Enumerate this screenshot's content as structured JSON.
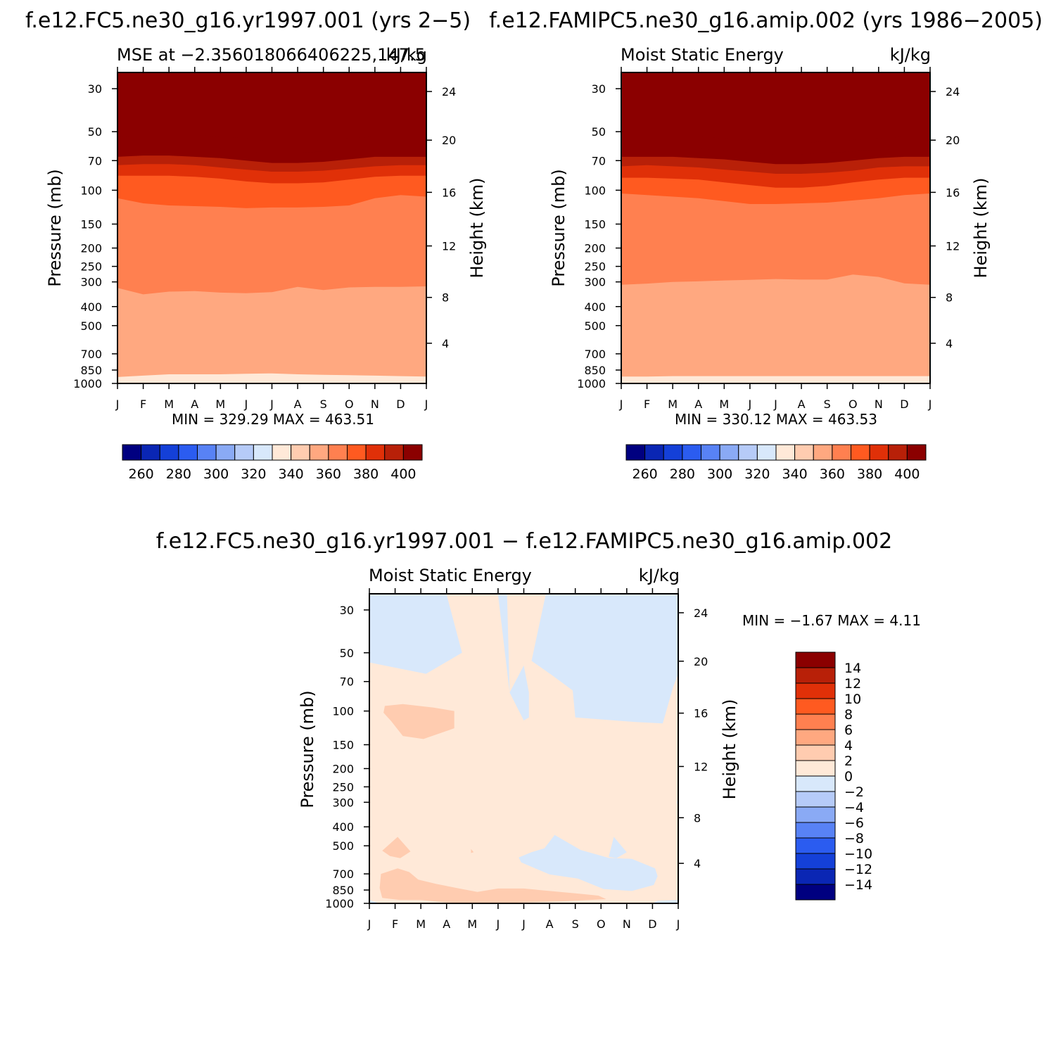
{
  "panels": [
    {
      "id": "p1",
      "case_title": "f.e12.FC5.ne30_g16.yr1997.001 (yrs 2-5)",
      "case_title_overlap": "f.e12.FAMIPC5.ne30_g16.amip.002 (yrs 1986-2005)",
      "left_label": "MSE at -2.356018066406225,147.5",
      "right_label": "kJ/kg",
      "minmax": "MIN = 329.29 MAX = 463.51"
    },
    {
      "id": "p2",
      "left_label": "Moist Static Energy",
      "right_label": "kJ/kg",
      "minmax": "MIN = 330.12 MAX = 463.53"
    },
    {
      "id": "p3",
      "case_title": "f.e12.FC5.ne30_g16.yr1997.001 - f.e12.FAMIPC5.ne30_g16.amip.002",
      "left_label": "Moist Static Energy",
      "right_label": "kJ/kg",
      "minmax": "MIN = -1.67 MAX = 4.11"
    }
  ],
  "axes": {
    "ylabel_left": "Pressure (mb)",
    "ylabel_right": "Height (km)",
    "pressure_ticks": [
      "30",
      "50",
      "70",
      "100",
      "150",
      "200",
      "250",
      "300",
      "400",
      "500",
      "700",
      "850",
      "1000"
    ],
    "height_ticks": [
      "4",
      "8",
      "12",
      "16",
      "20",
      "24"
    ],
    "month_ticks": [
      "J",
      "F",
      "M",
      "A",
      "M",
      "J",
      "J",
      "A",
      "S",
      "O",
      "N",
      "D",
      "J"
    ]
  },
  "colorbar_top": {
    "colors": [
      "#000080",
      "#0a26b4",
      "#1440d8",
      "#2b5cf0",
      "#5882f5",
      "#8aaaf5",
      "#b6cbf8",
      "#d8e8fb",
      "#ffe9d8",
      "#ffccb0",
      "#ffa880",
      "#ff8050",
      "#ff5a20",
      "#e03008",
      "#b82008",
      "#8b0000"
    ],
    "labels": [
      "260",
      "280",
      "300",
      "320",
      "340",
      "360",
      "380",
      "400"
    ]
  },
  "colorbar_diff": {
    "colors": [
      "#8b0000",
      "#b82008",
      "#e03008",
      "#ff5a20",
      "#ff8050",
      "#ffa880",
      "#ffccb0",
      "#ffe9d8",
      "#d8e8fb",
      "#b6cbf8",
      "#8aaaf5",
      "#5882f5",
      "#2b5cf0",
      "#1440d8",
      "#0a26b4",
      "#000080"
    ],
    "labels": [
      "14",
      "12",
      "10",
      "8",
      "6",
      "4",
      "2",
      "0",
      "-2",
      "-4",
      "-6",
      "-8",
      "-10",
      "-12",
      "-14"
    ]
  },
  "chart_data": [
    {
      "type": "heatmap",
      "title": "MSE at -2.356018066406225,147.5",
      "units": "kJ/kg",
      "xlabel": "",
      "ylabel": "Pressure (mb)",
      "y2label": "Height (km)",
      "x": [
        "J",
        "F",
        "M",
        "A",
        "M",
        "J",
        "J",
        "A",
        "S",
        "O",
        "N",
        "D",
        "J"
      ],
      "pressure_levels": [
        30,
        50,
        70,
        100,
        150,
        200,
        250,
        300,
        400,
        500,
        700,
        850,
        1000
      ],
      "contour_levels": [
        250,
        260,
        270,
        280,
        290,
        300,
        310,
        320,
        330,
        340,
        350,
        360,
        370,
        380,
        390,
        400
      ],
      "value_range": [
        329.29,
        463.51
      ],
      "bands_top_pressure_mb": [
        {
          "levels": [
            400,
            500
          ],
          "p": [
            53,
            52,
            52,
            52,
            53,
            54,
            56,
            56,
            55,
            54,
            53,
            53,
            53
          ]
        },
        {
          "levels": [
            390,
            400
          ],
          "p": [
            61,
            60,
            60,
            60,
            61,
            63,
            64,
            64,
            63,
            62,
            61,
            61,
            61
          ]
        },
        {
          "levels": [
            380,
            390
          ],
          "p": [
            67,
            66,
            66,
            67,
            68,
            70,
            72,
            72,
            71,
            69,
            67,
            67,
            67
          ]
        },
        {
          "levels": [
            370,
            380
          ],
          "p": [
            74,
            73,
            73,
            74,
            76,
            78,
            80,
            80,
            79,
            77,
            75,
            74,
            74
          ]
        },
        {
          "levels": [
            360,
            370
          ],
          "p": [
            84,
            84,
            84,
            85,
            87,
            90,
            92,
            92,
            91,
            88,
            85,
            84,
            84
          ]
        },
        {
          "levels": [
            350,
            360
          ],
          "p": [
            110,
            117,
            120,
            121,
            122,
            124,
            123,
            123,
            122,
            120,
            110,
            106,
            108
          ]
        },
        {
          "levels": [
            340,
            350
          ],
          "p": [
            322,
            347,
            336,
            334,
            340,
            342,
            338,
            318,
            330,
            320,
            318,
            318,
            316
          ]
        },
        {
          "levels": [
            330,
            340
          ],
          "p": [
            925,
            910,
            895,
            895,
            895,
            890,
            885,
            895,
            900,
            905,
            910,
            915,
            920
          ]
        }
      ],
      "minmax": "MIN = 329.29 MAX = 463.51"
    },
    {
      "type": "heatmap",
      "title": "Moist Static Energy",
      "units": "kJ/kg",
      "xlabel": "",
      "ylabel": "Pressure (mb)",
      "y2label": "Height (km)",
      "x": [
        "J",
        "F",
        "M",
        "A",
        "M",
        "J",
        "J",
        "A",
        "S",
        "O",
        "N",
        "D",
        "J"
      ],
      "pressure_levels": [
        30,
        50,
        70,
        100,
        150,
        200,
        250,
        300,
        400,
        500,
        700,
        850,
        1000
      ],
      "contour_levels": [
        250,
        260,
        270,
        280,
        290,
        300,
        310,
        320,
        330,
        340,
        350,
        360,
        370,
        380,
        390,
        400
      ],
      "value_range": [
        330.12,
        463.53
      ],
      "bands_top_pressure_mb": [
        {
          "levels": [
            400,
            500
          ],
          "p": [
            53,
            53,
            53,
            53,
            54,
            55,
            57,
            57,
            56,
            55,
            54,
            53,
            53
          ]
        },
        {
          "levels": [
            390,
            400
          ],
          "p": [
            61,
            61,
            61,
            61,
            62,
            64,
            65,
            65,
            64,
            63,
            62,
            61,
            61
          ]
        },
        {
          "levels": [
            380,
            390
          ],
          "p": [
            67,
            67,
            67,
            68,
            69,
            71,
            73,
            73,
            72,
            70,
            68,
            67,
            67
          ]
        },
        {
          "levels": [
            370,
            380
          ],
          "p": [
            75,
            74,
            75,
            76,
            78,
            80,
            82,
            82,
            81,
            79,
            76,
            75,
            75
          ]
        },
        {
          "levels": [
            360,
            370
          ],
          "p": [
            86,
            86,
            87,
            88,
            91,
            94,
            97,
            97,
            95,
            91,
            88,
            86,
            86
          ]
        },
        {
          "levels": [
            350,
            360
          ],
          "p": [
            104,
            106,
            108,
            110,
            114,
            118,
            118,
            117,
            116,
            113,
            110,
            106,
            104
          ]
        },
        {
          "levels": [
            340,
            350
          ],
          "p": [
            310,
            306,
            300,
            298,
            295,
            293,
            290,
            292,
            292,
            275,
            283,
            305,
            310
          ]
        },
        {
          "levels": [
            330,
            340
          ],
          "p": [
            920,
            920,
            915,
            915,
            915,
            915,
            915,
            915,
            915,
            915,
            915,
            915,
            915
          ]
        }
      ],
      "minmax": "MIN = 330.12 MAX = 463.53"
    },
    {
      "type": "heatmap",
      "title": "Moist Static Energy",
      "units": "kJ/kg",
      "xlabel": "",
      "ylabel": "Pressure (mb)",
      "y2label": "Height (km)",
      "x": [
        "J",
        "F",
        "M",
        "A",
        "M",
        "J",
        "J",
        "A",
        "S",
        "O",
        "N",
        "D",
        "J"
      ],
      "pressure_levels": [
        30,
        50,
        70,
        100,
        150,
        200,
        250,
        300,
        400,
        500,
        700,
        850,
        1000
      ],
      "contour_levels": [
        -14,
        -12,
        -10,
        -8,
        -6,
        -4,
        -2,
        0,
        2,
        4,
        6,
        8,
        10,
        12,
        14
      ],
      "background_band": [
        0,
        2
      ],
      "value_range": [
        -1.67,
        4.11
      ],
      "minmax": "MIN = -1.67 MAX = 4.11",
      "regions": [
        {
          "levels": [
            -2,
            0
          ],
          "pts": [
            [
              0,
              25
            ],
            [
              3,
              25
            ],
            [
              3.6,
              50
            ],
            [
              2.2,
              64
            ],
            [
              0,
              56
            ]
          ]
        },
        {
          "levels": [
            -2,
            0
          ],
          "pts": [
            [
              5,
              25
            ],
            [
              5.35,
              25
            ],
            [
              5.45,
              80
            ],
            [
              6,
              58
            ],
            [
              6.2,
              80
            ],
            [
              6.2,
              108
            ],
            [
              6,
              112
            ],
            [
              5.45,
              80
            ],
            [
              5,
              25
            ]
          ]
        },
        {
          "levels": [
            -2,
            0
          ],
          "pts": [
            [
              6.85,
              25
            ],
            [
              12,
              25
            ],
            [
              12,
              64
            ],
            [
              11.8,
              75
            ],
            [
              11.4,
              116
            ],
            [
              10.3,
              114
            ],
            [
              8,
              108
            ],
            [
              7.9,
              78
            ],
            [
              7.1,
              65
            ],
            [
              6.3,
              55
            ]
          ]
        },
        {
          "levels": [
            -2,
            0
          ],
          "pts": [
            [
              7.2,
              440
            ],
            [
              8.2,
              525
            ],
            [
              9.3,
              578
            ],
            [
              10.2,
              585
            ],
            [
              11.1,
              655
            ],
            [
              11.2,
              720
            ],
            [
              11.05,
              800
            ],
            [
              10.2,
              860
            ],
            [
              9.1,
              840
            ],
            [
              8.1,
              740
            ],
            [
              7,
              705
            ],
            [
              5.9,
              610
            ],
            [
              5.8,
              575
            ],
            [
              6.3,
              540
            ],
            [
              6.8,
              515
            ]
          ]
        },
        {
          "levels": [
            -2,
            0
          ],
          "pts": [
            [
              9.5,
              450
            ],
            [
              10,
              540
            ],
            [
              9.6,
              580
            ],
            [
              9.3,
              570
            ]
          ]
        },
        {
          "levels": [
            -2,
            0
          ],
          "pts": [
            [
              0,
              960
            ],
            [
              0.4,
              1000
            ],
            [
              0,
              1000
            ]
          ]
        },
        {
          "levels": [
            -2,
            0
          ],
          "pts": [
            [
              11.2,
              970
            ],
            [
              12,
              960
            ],
            [
              12,
              1000
            ],
            [
              11,
              1000
            ]
          ]
        },
        {
          "levels": [
            -2,
            0
          ],
          "pts": [
            [
              12,
              280
            ],
            [
              11.95,
              300
            ],
            [
              12,
              320
            ]
          ]
        },
        {
          "levels": [
            2,
            4
          ],
          "pts": [
            [
              0.6,
              94
            ],
            [
              1.3,
              92
            ],
            [
              2.5,
              96
            ],
            [
              3.3,
              100
            ],
            [
              3.3,
              123
            ],
            [
              2.1,
              140
            ],
            [
              1.3,
              135
            ],
            [
              0.85,
              113
            ],
            [
              0.55,
              102
            ]
          ]
        },
        {
          "levels": [
            2,
            4
          ],
          "pts": [
            [
              0.5,
              530
            ],
            [
              1.1,
              450
            ],
            [
              1.6,
              535
            ],
            [
              1.2,
              580
            ],
            [
              0.8,
              565
            ]
          ]
        },
        {
          "levels": [
            2,
            4
          ],
          "pts": [
            [
              0.45,
              700
            ],
            [
              1.1,
              655
            ],
            [
              1.55,
              685
            ],
            [
              1.9,
              750
            ],
            [
              2.6,
              790
            ],
            [
              3.6,
              840
            ],
            [
              4.2,
              870
            ],
            [
              5,
              835
            ],
            [
              6,
              835
            ],
            [
              7,
              860
            ],
            [
              8,
              885
            ],
            [
              8.9,
              910
            ],
            [
              9.2,
              950
            ],
            [
              7.6,
              975
            ],
            [
              6,
              990
            ],
            [
              4.4,
              1000
            ],
            [
              3,
              990
            ],
            [
              2,
              960
            ],
            [
              1.2,
              960
            ],
            [
              0.5,
              935
            ],
            [
              0.4,
              830
            ]
          ]
        },
        {
          "levels": [
            2,
            4
          ],
          "pts": [
            [
              3.95,
              520
            ],
            [
              4.05,
              540
            ],
            [
              3.95,
              545
            ]
          ]
        }
      ]
    }
  ]
}
